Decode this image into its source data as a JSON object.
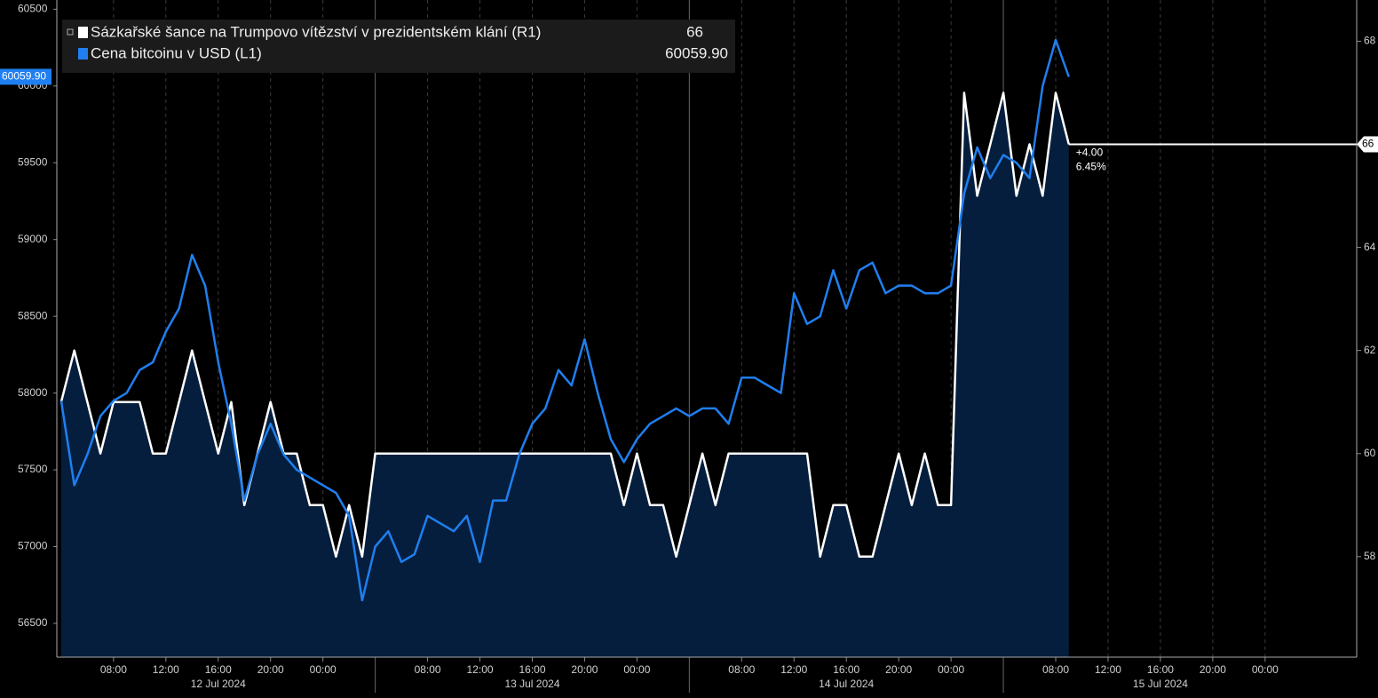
{
  "chart_data": {
    "type": "line",
    "series": [
      {
        "name": "Sázkařské šance na Trumpovo vítězství v prezidentském klání (R1)",
        "color": "#ffffff",
        "area_color": "#061e3d",
        "axis": "y2",
        "values": [
          61,
          62,
          61,
          60,
          61,
          61,
          61,
          60,
          60,
          61,
          62,
          61,
          60,
          61,
          59,
          60,
          61,
          60,
          60,
          59,
          59,
          58,
          59,
          58,
          60,
          60,
          60,
          60,
          60,
          60,
          60,
          60,
          60,
          60,
          60,
          60,
          60,
          60,
          60,
          60,
          60,
          60,
          60,
          59,
          60,
          59,
          59,
          58,
          59,
          60,
          59,
          60,
          60,
          60,
          60,
          60,
          60,
          60,
          58,
          59,
          59,
          58,
          58,
          59,
          60,
          59,
          60,
          59,
          59,
          67,
          65,
          66,
          67,
          65,
          66,
          65,
          67,
          66
        ]
      },
      {
        "name": "Cena bitcoinu v USD (L1)",
        "color": "#1f7ff0",
        "axis": "y",
        "last_value_label": "60059.90",
        "values": [
          57950,
          57400,
          57600,
          57850,
          57950,
          58000,
          58150,
          58200,
          58400,
          58550,
          58900,
          58700,
          58200,
          57800,
          57300,
          57600,
          57800,
          57600,
          57500,
          57450,
          57400,
          57350,
          57200,
          56650,
          57000,
          57100,
          56900,
          56950,
          57200,
          57150,
          57100,
          57200,
          56900,
          57300,
          57300,
          57600,
          57800,
          57900,
          58150,
          58050,
          58350,
          58000,
          57700,
          57550,
          57700,
          57800,
          57850,
          57900,
          57850,
          57900,
          57900,
          57800,
          58100,
          58100,
          58050,
          58000,
          58650,
          58450,
          58500,
          58800,
          58550,
          58800,
          58850,
          58650,
          58700,
          58700,
          58650,
          58650,
          58700,
          59300,
          59600,
          59400,
          59550,
          59500,
          59400,
          60000,
          60300,
          60059.9
        ]
      }
    ],
    "x": [
      "2024-07-12T04:00",
      "2024-07-12T05:00",
      "2024-07-12T06:00",
      "2024-07-12T07:00",
      "2024-07-12T08:00",
      "2024-07-12T09:00",
      "2024-07-12T10:00",
      "2024-07-12T11:00",
      "2024-07-12T12:00",
      "2024-07-12T13:00",
      "2024-07-12T14:00",
      "2024-07-12T15:00",
      "2024-07-12T16:00",
      "2024-07-12T17:00",
      "2024-07-12T18:00",
      "2024-07-12T19:00",
      "2024-07-12T20:00",
      "2024-07-12T21:00",
      "2024-07-12T22:00",
      "2024-07-12T23:00",
      "2024-07-13T00:00",
      "2024-07-13T01:00",
      "2024-07-13T02:00",
      "2024-07-13T03:00",
      "2024-07-13T04:00",
      "2024-07-13T05:00",
      "2024-07-13T06:00",
      "2024-07-13T07:00",
      "2024-07-13T08:00",
      "2024-07-13T09:00",
      "2024-07-13T10:00",
      "2024-07-13T11:00",
      "2024-07-13T12:00",
      "2024-07-13T13:00",
      "2024-07-13T14:00",
      "2024-07-13T15:00",
      "2024-07-13T16:00",
      "2024-07-13T17:00",
      "2024-07-13T18:00",
      "2024-07-13T19:00",
      "2024-07-13T20:00",
      "2024-07-13T21:00",
      "2024-07-13T22:00",
      "2024-07-13T23:00",
      "2024-07-14T00:00",
      "2024-07-14T01:00",
      "2024-07-14T02:00",
      "2024-07-14T03:00",
      "2024-07-14T04:00",
      "2024-07-14T05:00",
      "2024-07-14T06:00",
      "2024-07-14T07:00",
      "2024-07-14T08:00",
      "2024-07-14T09:00",
      "2024-07-14T10:00",
      "2024-07-14T11:00",
      "2024-07-14T12:00",
      "2024-07-14T13:00",
      "2024-07-14T14:00",
      "2024-07-14T15:00",
      "2024-07-14T16:00",
      "2024-07-14T17:00",
      "2024-07-14T18:00",
      "2024-07-14T19:00",
      "2024-07-14T20:00",
      "2024-07-14T21:00",
      "2024-07-14T22:00",
      "2024-07-14T23:00",
      "2024-07-15T00:00",
      "2024-07-15T01:00",
      "2024-07-15T02:00",
      "2024-07-15T03:00",
      "2024-07-15T04:00",
      "2024-07-15T05:00",
      "2024-07-15T06:00",
      "2024-07-15T07:00",
      "2024-07-15T08:00",
      "2024-07-15T09:00"
    ],
    "xlim": [
      "2024-07-12T03:40",
      "2024-07-16T07:00"
    ],
    "xticks": [
      {
        "value": "2024-07-12T08:00",
        "label": "08:00"
      },
      {
        "value": "2024-07-12T12:00",
        "label": "12:00"
      },
      {
        "value": "2024-07-12T16:00",
        "label": "16:00"
      },
      {
        "value": "2024-07-12T20:00",
        "label": "20:00"
      },
      {
        "value": "2024-07-13T00:00",
        "label": "00:00"
      },
      {
        "value": "2024-07-13T08:00",
        "label": "08:00"
      },
      {
        "value": "2024-07-13T12:00",
        "label": "12:00"
      },
      {
        "value": "2024-07-13T16:00",
        "label": "16:00"
      },
      {
        "value": "2024-07-13T20:00",
        "label": "20:00"
      },
      {
        "value": "2024-07-14T00:00",
        "label": "00:00"
      },
      {
        "value": "2024-07-14T08:00",
        "label": "08:00"
      },
      {
        "value": "2024-07-14T12:00",
        "label": "12:00"
      },
      {
        "value": "2024-07-14T16:00",
        "label": "16:00"
      },
      {
        "value": "2024-07-14T20:00",
        "label": "20:00"
      },
      {
        "value": "2024-07-15T00:00",
        "label": "00:00"
      },
      {
        "value": "2024-07-15T08:00",
        "label": "08:00"
      },
      {
        "value": "2024-07-15T12:00",
        "label": "12:00"
      },
      {
        "value": "2024-07-15T16:00",
        "label": "16:00"
      },
      {
        "value": "2024-07-15T20:00",
        "label": "20:00"
      },
      {
        "value": "2024-07-16T00:00",
        "label": "00:00"
      }
    ],
    "xdates": [
      {
        "value": "2024-07-12T16:00",
        "label": "12 Jul 2024"
      },
      {
        "value": "2024-07-13T16:00",
        "label": "13 Jul 2024"
      },
      {
        "value": "2024-07-14T16:00",
        "label": "14 Jul 2024"
      },
      {
        "value": "2024-07-15T16:00",
        "label": "15 Jul 2024"
      }
    ],
    "xseparators": [
      "2024-07-13T04:00",
      "2024-07-14T04:00",
      "2024-07-15T04:00"
    ],
    "ylim": [
      56280,
      60560
    ],
    "yticks": [
      56500,
      57000,
      57500,
      58000,
      58500,
      59000,
      59500,
      60000,
      60500
    ],
    "y2lim": [
      56.05,
      68.8
    ],
    "y2ticks": [
      58,
      60,
      62,
      64,
      66,
      68
    ],
    "annotations": [
      "+4.00",
      "6.45%"
    ],
    "grid": true,
    "legend": "top-left"
  }
}
